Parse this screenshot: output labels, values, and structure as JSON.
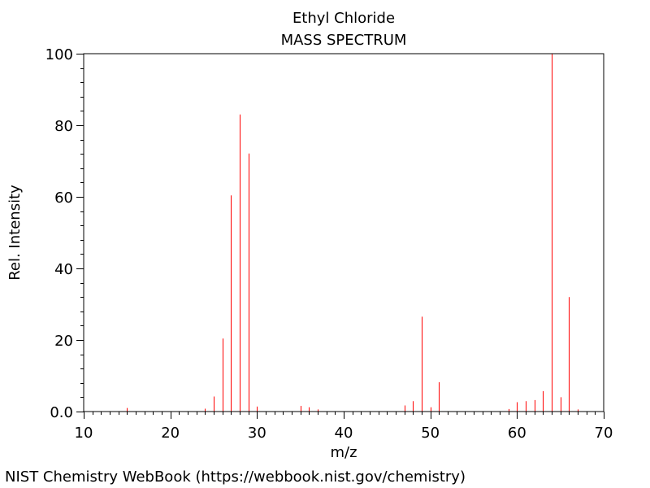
{
  "chart_data": {
    "type": "bar",
    "title": "Ethyl Chloride",
    "subtitle": "MASS SPECTRUM",
    "xlabel": "m/z",
    "ylabel": "Rel. Intensity",
    "xlim": [
      10,
      70
    ],
    "ylim": [
      0,
      100
    ],
    "xticks": [
      10,
      20,
      30,
      40,
      50,
      60,
      70
    ],
    "yticks": [
      0,
      20,
      40,
      60,
      80,
      100
    ],
    "ytick_labels": [
      "0.0",
      "20",
      "40",
      "60",
      "80",
      "100"
    ],
    "grid": false,
    "color": "#ff0000",
    "peaks": [
      {
        "mz": 15,
        "intensity": 1.0
      },
      {
        "mz": 24,
        "intensity": 0.8
      },
      {
        "mz": 25,
        "intensity": 4.2
      },
      {
        "mz": 26,
        "intensity": 20.4
      },
      {
        "mz": 27,
        "intensity": 60.4
      },
      {
        "mz": 28,
        "intensity": 83.0
      },
      {
        "mz": 29,
        "intensity": 72.1
      },
      {
        "mz": 30,
        "intensity": 1.4
      },
      {
        "mz": 35,
        "intensity": 1.6
      },
      {
        "mz": 36,
        "intensity": 1.2
      },
      {
        "mz": 37,
        "intensity": 0.6
      },
      {
        "mz": 47,
        "intensity": 1.7
      },
      {
        "mz": 48,
        "intensity": 2.9
      },
      {
        "mz": 49,
        "intensity": 26.5
      },
      {
        "mz": 50,
        "intensity": 1.2
      },
      {
        "mz": 51,
        "intensity": 8.2
      },
      {
        "mz": 59,
        "intensity": 0.7
      },
      {
        "mz": 60,
        "intensity": 2.6
      },
      {
        "mz": 61,
        "intensity": 2.9
      },
      {
        "mz": 62,
        "intensity": 3.2
      },
      {
        "mz": 63,
        "intensity": 5.7
      },
      {
        "mz": 64,
        "intensity": 100.0
      },
      {
        "mz": 65,
        "intensity": 4.0
      },
      {
        "mz": 66,
        "intensity": 32.0
      },
      {
        "mz": 67,
        "intensity": 0.6
      }
    ]
  },
  "footer": {
    "credit": "NIST Chemistry WebBook (https://webbook.nist.gov/chemistry)"
  }
}
